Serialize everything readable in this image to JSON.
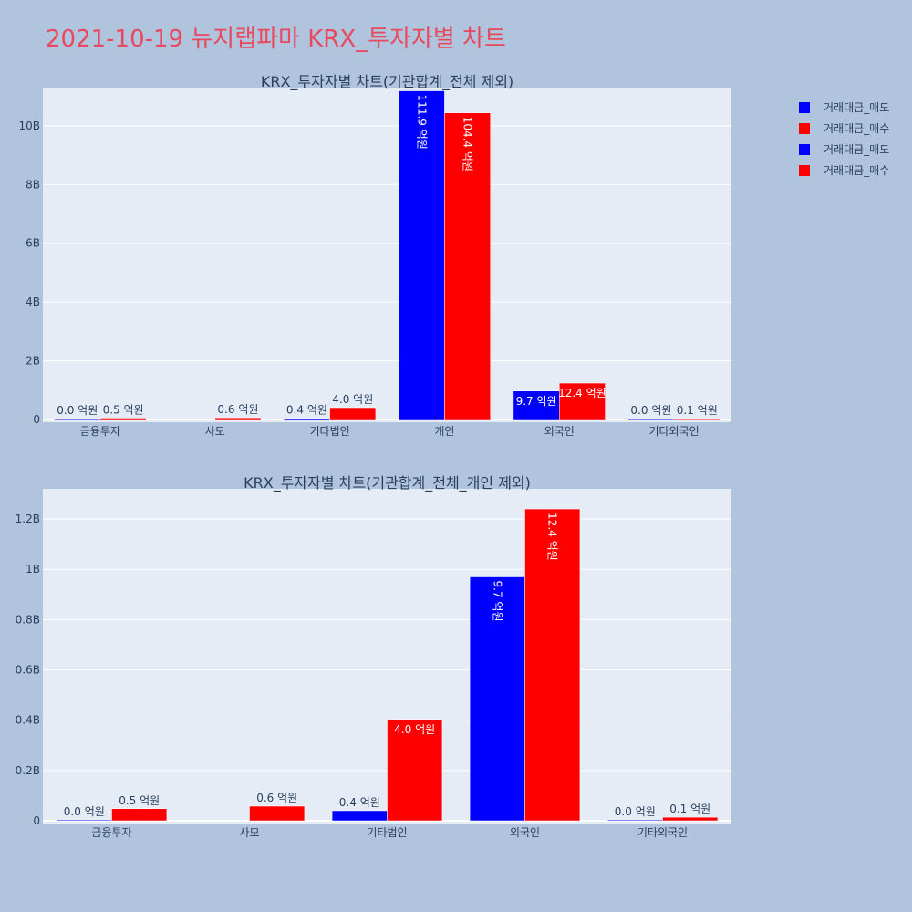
{
  "title": "2021-10-19 뉴지랩파마 KRX_투자자별 차트",
  "colors": {
    "sell": "#0000ff",
    "buy": "#ff0000",
    "title": "#e8495e"
  },
  "legend": [
    {
      "label": "거래대금_매도",
      "color": "#0000ff"
    },
    {
      "label": "거래대금_매수",
      "color": "#ff0000"
    },
    {
      "label": "거래대금_매도",
      "color": "#0000ff"
    },
    {
      "label": "거래대금_매수",
      "color": "#ff0000"
    }
  ],
  "chart_data": [
    {
      "type": "bar",
      "title": "KRX_투자자별 차트(기관합계_전체 제외)",
      "categories": [
        "금융투자",
        "사모",
        "기타법인",
        "개인",
        "외국인",
        "기타외국인"
      ],
      "ylim": [
        0,
        11300000000
      ],
      "yticks": [
        0,
        2000000000,
        4000000000,
        6000000000,
        8000000000,
        10000000000
      ],
      "yticklabels": [
        "0",
        "2B",
        "4B",
        "6B",
        "8B",
        "10B"
      ],
      "series": [
        {
          "name": "거래대금_매도",
          "color": "#0000ff",
          "values": [
            2000000,
            0,
            40000000,
            11190000000,
            970000000,
            2000000
          ],
          "labels": [
            "0.0 억원",
            "",
            "0.4 억원",
            "111.9 억원",
            "9.7 억원",
            "0.0 억원"
          ]
        },
        {
          "name": "거래대금_매수",
          "color": "#ff0000",
          "values": [
            48000000,
            58000000,
            403000000,
            10440000000,
            1240000000,
            14000000
          ],
          "labels": [
            "0.5 억원",
            "0.6 억원",
            "4.0 억원",
            "104.4 억원",
            "12.4 억원",
            "0.1 억원"
          ]
        }
      ]
    },
    {
      "type": "bar",
      "title": "KRX_투자자별 차트(기관합계_전체_개인 제외)",
      "categories": [
        "금융투자",
        "사모",
        "기타법인",
        "외국인",
        "기타외국인"
      ],
      "ylim": [
        0,
        1320000000
      ],
      "yticks": [
        0,
        200000000,
        400000000,
        600000000,
        800000000,
        1000000000,
        1200000000
      ],
      "yticklabels": [
        "0",
        "0.2B",
        "0.4B",
        "0.6B",
        "0.8B",
        "1B",
        "1.2B"
      ],
      "series": [
        {
          "name": "거래대금_매도",
          "color": "#0000ff",
          "values": [
            2000000,
            0,
            40000000,
            970000000,
            2000000
          ],
          "labels": [
            "0.0 억원",
            "",
            "0.4 억원",
            "9.7 억원",
            "0.0 억원"
          ]
        },
        {
          "name": "거래대금_매수",
          "color": "#ff0000",
          "values": [
            48000000,
            58000000,
            403000000,
            1240000000,
            14000000
          ],
          "labels": [
            "0.5 억원",
            "0.6 억원",
            "4.0 억원",
            "12.4 억원",
            "0.1 억원"
          ]
        }
      ]
    }
  ]
}
